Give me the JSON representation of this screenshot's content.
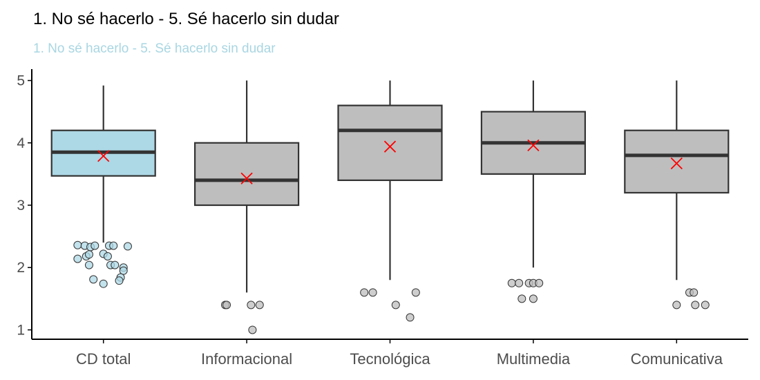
{
  "chart_data": {
    "type": "boxplot",
    "title": "1. No sé hacerlo - 5. Sé hacerlo sin dudar",
    "subtitle": "1. No sé hacerlo - 5. Sé hacerlo sin dudar",
    "xlabel": "",
    "ylabel": "",
    "ylim": [
      0.85,
      5.15
    ],
    "yticks": [
      1,
      2,
      3,
      4,
      5
    ],
    "grid": false,
    "colors": {
      "title": "#000000",
      "subtitle": "#a9d6e2",
      "highlight_fill": "#add8e6",
      "box_fill": "#bebebe",
      "box_stroke": "#333333",
      "mean_marker": "#ff0000",
      "axis": "#000000",
      "tick_text": "#4d4d4d"
    },
    "categories": [
      "CD total",
      "Informacional",
      "Tecnológica",
      "Multimedia",
      "Comunicativa"
    ],
    "boxes": [
      {
        "category": "CD total",
        "highlight": true,
        "min": 2.4,
        "q1": 3.47,
        "median": 3.85,
        "q3": 4.2,
        "max": 4.92,
        "mean": 3.79,
        "outliers": [
          [
            -0.18,
            2.36
          ],
          [
            -0.13,
            2.35
          ],
          [
            -0.09,
            2.33
          ],
          [
            -0.06,
            2.35
          ],
          [
            0.04,
            2.35
          ],
          [
            0.07,
            2.35
          ],
          [
            0.17,
            2.34
          ],
          [
            -0.18,
            2.14
          ],
          [
            -0.12,
            2.18
          ],
          [
            -0.1,
            2.21
          ],
          [
            0.0,
            2.22
          ],
          [
            0.03,
            2.18
          ],
          [
            -0.1,
            2.04
          ],
          [
            0.05,
            2.04
          ],
          [
            0.08,
            2.04
          ],
          [
            0.14,
            2.0
          ],
          [
            0.14,
            1.95
          ],
          [
            -0.07,
            1.81
          ],
          [
            0.0,
            1.74
          ],
          [
            0.12,
            1.84
          ],
          [
            0.11,
            1.79
          ]
        ]
      },
      {
        "category": "Informacional",
        "highlight": false,
        "min": 1.6,
        "q1": 3.0,
        "median": 3.4,
        "q3": 4.0,
        "max": 5.0,
        "mean": 3.43,
        "outliers": [
          [
            -0.15,
            1.4
          ],
          [
            -0.14,
            1.4
          ],
          [
            0.03,
            1.4
          ],
          [
            0.09,
            1.4
          ],
          [
            0.04,
            1.0
          ]
        ]
      },
      {
        "category": "Tecnológica",
        "highlight": false,
        "min": 1.8,
        "q1": 3.4,
        "median": 4.2,
        "q3": 4.6,
        "max": 5.0,
        "mean": 3.94,
        "outliers": [
          [
            -0.18,
            1.6
          ],
          [
            -0.12,
            1.6
          ],
          [
            0.18,
            1.6
          ],
          [
            0.04,
            1.4
          ],
          [
            0.14,
            1.2
          ]
        ]
      },
      {
        "category": "Multimedia",
        "highlight": false,
        "min": 2.0,
        "q1": 3.5,
        "median": 4.0,
        "q3": 4.5,
        "max": 5.0,
        "mean": 3.96,
        "outliers": [
          [
            -0.15,
            1.75
          ],
          [
            -0.1,
            1.75
          ],
          [
            -0.03,
            1.75
          ],
          [
            0.0,
            1.75
          ],
          [
            0.04,
            1.75
          ],
          [
            -0.08,
            1.5
          ],
          [
            0.0,
            1.5
          ]
        ]
      },
      {
        "category": "Comunicativa",
        "highlight": false,
        "min": 1.8,
        "q1": 3.2,
        "median": 3.8,
        "q3": 4.2,
        "max": 5.0,
        "mean": 3.67,
        "outliers": [
          [
            0.09,
            1.6
          ],
          [
            0.12,
            1.6
          ],
          [
            0.0,
            1.4
          ],
          [
            0.13,
            1.4
          ],
          [
            0.2,
            1.4
          ]
        ]
      }
    ]
  }
}
